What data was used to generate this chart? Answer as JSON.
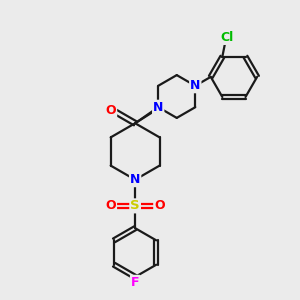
{
  "background_color": "#ebebeb",
  "bond_color": "#1a1a1a",
  "bond_width": 1.6,
  "atom_colors": {
    "N": "#0000ff",
    "O": "#ff0000",
    "S": "#cccc00",
    "F": "#ff00ff",
    "Cl": "#00bb00",
    "C": "#1a1a1a"
  },
  "figsize": [
    3.0,
    3.0
  ],
  "dpi": 100
}
